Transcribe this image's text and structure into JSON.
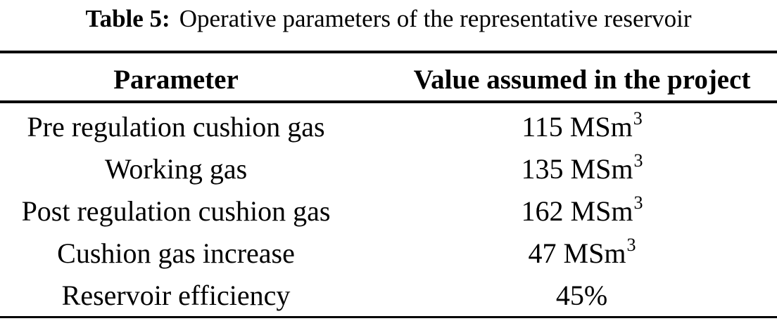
{
  "caption": {
    "label": "Table 5:",
    "text": "Operative parameters of the representative reservoir"
  },
  "table": {
    "headers": {
      "parameter": "Parameter",
      "value": "Value assumed in the project"
    },
    "rows": [
      {
        "parameter": "Pre regulation cushion gas",
        "value": "115 MSm",
        "value_sup": "3"
      },
      {
        "parameter": "Working gas",
        "value": "135 MSm",
        "value_sup": "3"
      },
      {
        "parameter": "Post regulation cushion gas",
        "value": "162 MSm",
        "value_sup": "3"
      },
      {
        "parameter": "Cushion gas increase",
        "value": "47 MSm",
        "value_sup": "3"
      },
      {
        "parameter": "Reservoir efficiency",
        "value": "45%",
        "value_sup": ""
      }
    ]
  },
  "style": {
    "text_color": "#000000",
    "rule_color": "#000000",
    "background_color": "#ffffff"
  }
}
